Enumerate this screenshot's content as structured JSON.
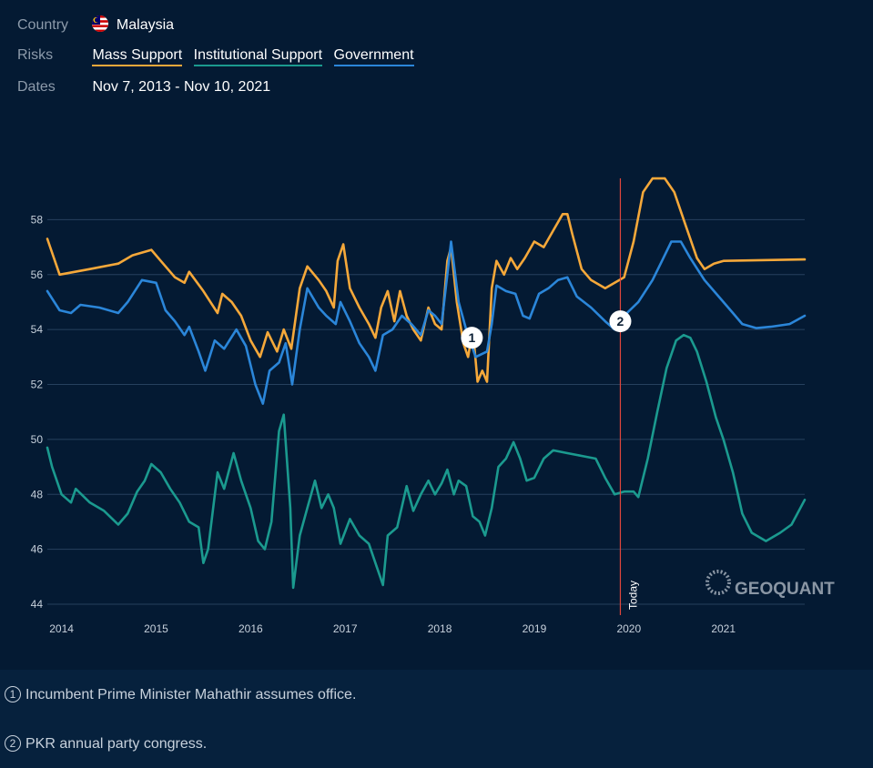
{
  "filters": {
    "country_label": "Country",
    "country_value": "Malaysia",
    "risks_label": "Risks",
    "risks": [
      "Mass Support",
      "Institutional Support",
      "Government"
    ],
    "dates_label": "Dates",
    "dates_value": "Nov 7, 2013 - Nov 10, 2021"
  },
  "colors": {
    "mass": "#f5a83a",
    "institutional": "#1b9a8f",
    "government": "#2b86d9",
    "today_line": "#e0463c",
    "grid": "#26405e"
  },
  "brand": "GEOQUANT",
  "notes": [
    {
      "num": "1",
      "text": "Incumbent Prime Minister Mahathir assumes office."
    },
    {
      "num": "2",
      "text": "PKR annual party congress."
    }
  ],
  "chart_data": {
    "type": "line",
    "title": "",
    "xlabel": "",
    "ylabel": "",
    "xlim": [
      2013.85,
      2021.86
    ],
    "ylim": [
      44,
      60
    ],
    "y_ticks": [
      44,
      46,
      48,
      50,
      52,
      54,
      56,
      58
    ],
    "x_ticks": [
      2014,
      2015,
      2016,
      2017,
      2018,
      2019,
      2020,
      2021
    ],
    "x_tick_labels": [
      "2014",
      "2015",
      "2016",
      "2017",
      "2018",
      "2019",
      "2020",
      "2021"
    ],
    "today": 2019.91,
    "today_label": "Today",
    "annotations": [
      {
        "label": "1",
        "x": 2018.34,
        "y": 53.7
      },
      {
        "label": "2",
        "x": 2019.91,
        "y": 54.3
      }
    ],
    "series": [
      {
        "name": "Mass Support",
        "color": "#f5a83a",
        "points": [
          [
            2013.85,
            57.3
          ],
          [
            2013.98,
            56.0
          ],
          [
            2014.3,
            56.2
          ],
          [
            2014.6,
            56.4
          ],
          [
            2014.75,
            56.7
          ],
          [
            2014.95,
            56.9
          ],
          [
            2015.05,
            56.5
          ],
          [
            2015.2,
            55.9
          ],
          [
            2015.3,
            55.7
          ],
          [
            2015.35,
            56.1
          ],
          [
            2015.5,
            55.4
          ],
          [
            2015.65,
            54.6
          ],
          [
            2015.7,
            55.3
          ],
          [
            2015.8,
            55.0
          ],
          [
            2015.9,
            54.5
          ],
          [
            2016.0,
            53.6
          ],
          [
            2016.1,
            53.0
          ],
          [
            2016.18,
            53.9
          ],
          [
            2016.28,
            53.2
          ],
          [
            2016.35,
            54.0
          ],
          [
            2016.43,
            53.3
          ],
          [
            2016.52,
            55.5
          ],
          [
            2016.6,
            56.3
          ],
          [
            2016.72,
            55.8
          ],
          [
            2016.8,
            55.4
          ],
          [
            2016.88,
            54.8
          ],
          [
            2016.92,
            56.5
          ],
          [
            2016.98,
            57.1
          ],
          [
            2017.05,
            55.5
          ],
          [
            2017.15,
            54.8
          ],
          [
            2017.25,
            54.2
          ],
          [
            2017.32,
            53.7
          ],
          [
            2017.38,
            54.8
          ],
          [
            2017.45,
            55.4
          ],
          [
            2017.52,
            54.3
          ],
          [
            2017.58,
            55.4
          ],
          [
            2017.65,
            54.5
          ],
          [
            2017.72,
            54.0
          ],
          [
            2017.8,
            53.6
          ],
          [
            2017.88,
            54.8
          ],
          [
            2017.95,
            54.2
          ],
          [
            2018.02,
            54.0
          ],
          [
            2018.08,
            56.5
          ],
          [
            2018.12,
            57.0
          ],
          [
            2018.18,
            55.0
          ],
          [
            2018.25,
            53.5
          ],
          [
            2018.3,
            53.0
          ],
          [
            2018.35,
            54.0
          ],
          [
            2018.4,
            52.1
          ],
          [
            2018.45,
            52.5
          ],
          [
            2018.5,
            52.1
          ],
          [
            2018.55,
            55.5
          ],
          [
            2018.6,
            56.5
          ],
          [
            2018.68,
            56.0
          ],
          [
            2018.75,
            56.6
          ],
          [
            2018.82,
            56.2
          ],
          [
            2018.9,
            56.6
          ],
          [
            2019.0,
            57.2
          ],
          [
            2019.1,
            57.0
          ],
          [
            2019.2,
            57.6
          ],
          [
            2019.3,
            58.2
          ],
          [
            2019.35,
            58.2
          ],
          [
            2019.4,
            57.5
          ],
          [
            2019.5,
            56.2
          ],
          [
            2019.6,
            55.8
          ],
          [
            2019.75,
            55.5
          ],
          [
            2019.85,
            55.7
          ],
          [
            2019.95,
            55.9
          ],
          [
            2020.05,
            57.2
          ],
          [
            2020.15,
            59.0
          ],
          [
            2020.25,
            59.5
          ],
          [
            2020.38,
            59.5
          ],
          [
            2020.48,
            59.0
          ],
          [
            2020.6,
            57.8
          ],
          [
            2020.72,
            56.6
          ],
          [
            2020.8,
            56.2
          ],
          [
            2020.9,
            56.4
          ],
          [
            2021.0,
            56.5
          ],
          [
            2021.86,
            56.55
          ]
        ]
      },
      {
        "name": "Government",
        "color": "#2b86d9",
        "points": [
          [
            2013.85,
            55.4
          ],
          [
            2013.98,
            54.7
          ],
          [
            2014.1,
            54.6
          ],
          [
            2014.2,
            54.9
          ],
          [
            2014.4,
            54.8
          ],
          [
            2014.6,
            54.6
          ],
          [
            2014.7,
            55.0
          ],
          [
            2014.85,
            55.8
          ],
          [
            2015.0,
            55.7
          ],
          [
            2015.1,
            54.7
          ],
          [
            2015.2,
            54.3
          ],
          [
            2015.3,
            53.8
          ],
          [
            2015.35,
            54.1
          ],
          [
            2015.45,
            53.2
          ],
          [
            2015.52,
            52.5
          ],
          [
            2015.62,
            53.6
          ],
          [
            2015.72,
            53.3
          ],
          [
            2015.85,
            54.0
          ],
          [
            2015.95,
            53.4
          ],
          [
            2016.05,
            52.0
          ],
          [
            2016.13,
            51.3
          ],
          [
            2016.2,
            52.5
          ],
          [
            2016.3,
            52.8
          ],
          [
            2016.37,
            53.5
          ],
          [
            2016.44,
            52.0
          ],
          [
            2016.52,
            54.0
          ],
          [
            2016.6,
            55.5
          ],
          [
            2016.72,
            54.8
          ],
          [
            2016.8,
            54.5
          ],
          [
            2016.9,
            54.2
          ],
          [
            2016.95,
            55.0
          ],
          [
            2017.05,
            54.3
          ],
          [
            2017.15,
            53.5
          ],
          [
            2017.25,
            53.0
          ],
          [
            2017.32,
            52.5
          ],
          [
            2017.4,
            53.8
          ],
          [
            2017.5,
            54.0
          ],
          [
            2017.6,
            54.5
          ],
          [
            2017.7,
            54.2
          ],
          [
            2017.8,
            53.8
          ],
          [
            2017.88,
            54.7
          ],
          [
            2017.95,
            54.5
          ],
          [
            2018.02,
            54.2
          ],
          [
            2018.08,
            56.0
          ],
          [
            2018.12,
            57.2
          ],
          [
            2018.2,
            55.0
          ],
          [
            2018.28,
            54.0
          ],
          [
            2018.38,
            53.0
          ],
          [
            2018.5,
            53.2
          ],
          [
            2018.55,
            54.2
          ],
          [
            2018.6,
            55.6
          ],
          [
            2018.7,
            55.4
          ],
          [
            2018.8,
            55.3
          ],
          [
            2018.88,
            54.5
          ],
          [
            2018.95,
            54.4
          ],
          [
            2019.05,
            55.3
          ],
          [
            2019.15,
            55.5
          ],
          [
            2019.25,
            55.8
          ],
          [
            2019.35,
            55.9
          ],
          [
            2019.45,
            55.2
          ],
          [
            2019.6,
            54.8
          ],
          [
            2019.75,
            54.3
          ],
          [
            2019.85,
            54.0
          ],
          [
            2019.95,
            54.5
          ],
          [
            2020.1,
            55.0
          ],
          [
            2020.25,
            55.8
          ],
          [
            2020.35,
            56.5
          ],
          [
            2020.45,
            57.2
          ],
          [
            2020.55,
            57.2
          ],
          [
            2020.65,
            56.6
          ],
          [
            2020.8,
            55.8
          ],
          [
            2020.95,
            55.2
          ],
          [
            2021.1,
            54.6
          ],
          [
            2021.2,
            54.2
          ],
          [
            2021.35,
            54.05
          ],
          [
            2021.5,
            54.1
          ],
          [
            2021.7,
            54.2
          ],
          [
            2021.86,
            54.5
          ]
        ]
      },
      {
        "name": "Institutional Support",
        "color": "#1b9a8f",
        "points": [
          [
            2013.85,
            49.7
          ],
          [
            2013.9,
            49.0
          ],
          [
            2014.0,
            48.0
          ],
          [
            2014.1,
            47.7
          ],
          [
            2014.15,
            48.2
          ],
          [
            2014.3,
            47.7
          ],
          [
            2014.45,
            47.4
          ],
          [
            2014.6,
            46.9
          ],
          [
            2014.7,
            47.3
          ],
          [
            2014.8,
            48.1
          ],
          [
            2014.88,
            48.5
          ],
          [
            2014.95,
            49.1
          ],
          [
            2015.05,
            48.8
          ],
          [
            2015.15,
            48.2
          ],
          [
            2015.25,
            47.7
          ],
          [
            2015.35,
            47.0
          ],
          [
            2015.45,
            46.8
          ],
          [
            2015.5,
            45.5
          ],
          [
            2015.55,
            46.0
          ],
          [
            2015.65,
            48.8
          ],
          [
            2015.72,
            48.2
          ],
          [
            2015.82,
            49.5
          ],
          [
            2015.9,
            48.5
          ],
          [
            2016.0,
            47.5
          ],
          [
            2016.08,
            46.3
          ],
          [
            2016.15,
            46.0
          ],
          [
            2016.22,
            47.0
          ],
          [
            2016.3,
            50.3
          ],
          [
            2016.35,
            50.9
          ],
          [
            2016.42,
            47.5
          ],
          [
            2016.45,
            44.6
          ],
          [
            2016.52,
            46.5
          ],
          [
            2016.6,
            47.5
          ],
          [
            2016.68,
            48.5
          ],
          [
            2016.75,
            47.5
          ],
          [
            2016.82,
            48.0
          ],
          [
            2016.88,
            47.5
          ],
          [
            2016.95,
            46.2
          ],
          [
            2017.05,
            47.1
          ],
          [
            2017.15,
            46.5
          ],
          [
            2017.25,
            46.2
          ],
          [
            2017.32,
            45.5
          ],
          [
            2017.4,
            44.7
          ],
          [
            2017.45,
            46.5
          ],
          [
            2017.55,
            46.8
          ],
          [
            2017.65,
            48.3
          ],
          [
            2017.72,
            47.4
          ],
          [
            2017.8,
            48.0
          ],
          [
            2017.88,
            48.5
          ],
          [
            2017.95,
            48.0
          ],
          [
            2018.02,
            48.4
          ],
          [
            2018.08,
            48.9
          ],
          [
            2018.15,
            48.0
          ],
          [
            2018.2,
            48.5
          ],
          [
            2018.28,
            48.3
          ],
          [
            2018.35,
            47.2
          ],
          [
            2018.42,
            47.0
          ],
          [
            2018.48,
            46.5
          ],
          [
            2018.55,
            47.5
          ],
          [
            2018.62,
            49.0
          ],
          [
            2018.7,
            49.3
          ],
          [
            2018.78,
            49.9
          ],
          [
            2018.85,
            49.3
          ],
          [
            2018.92,
            48.5
          ],
          [
            2019.0,
            48.6
          ],
          [
            2019.1,
            49.3
          ],
          [
            2019.2,
            49.6
          ],
          [
            2019.35,
            49.5
          ],
          [
            2019.5,
            49.4
          ],
          [
            2019.65,
            49.3
          ],
          [
            2019.75,
            48.6
          ],
          [
            2019.85,
            48.0
          ],
          [
            2019.95,
            48.1
          ],
          [
            2020.05,
            48.1
          ],
          [
            2020.1,
            47.9
          ],
          [
            2020.2,
            49.3
          ],
          [
            2020.3,
            51.0
          ],
          [
            2020.4,
            52.6
          ],
          [
            2020.5,
            53.6
          ],
          [
            2020.58,
            53.8
          ],
          [
            2020.65,
            53.7
          ],
          [
            2020.72,
            53.2
          ],
          [
            2020.82,
            52.1
          ],
          [
            2020.92,
            50.8
          ],
          [
            2021.0,
            50.0
          ],
          [
            2021.1,
            48.8
          ],
          [
            2021.2,
            47.3
          ],
          [
            2021.3,
            46.6
          ],
          [
            2021.45,
            46.3
          ],
          [
            2021.6,
            46.6
          ],
          [
            2021.72,
            46.9
          ],
          [
            2021.86,
            47.8
          ]
        ]
      }
    ]
  }
}
